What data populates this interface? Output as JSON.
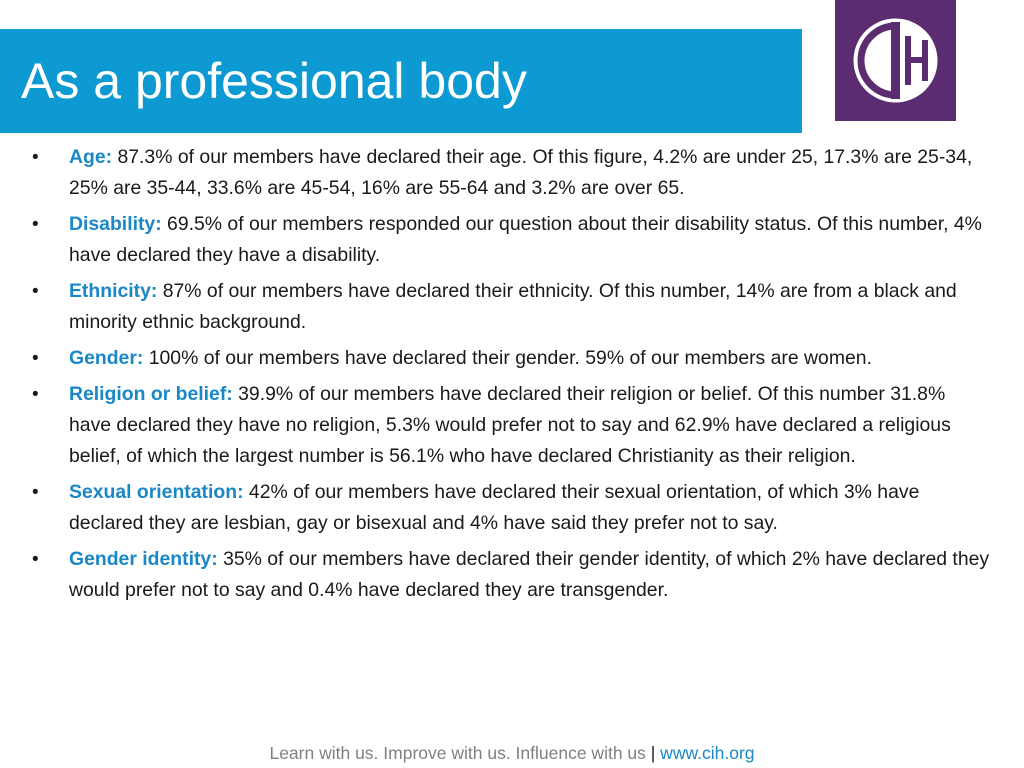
{
  "header": {
    "title": "As a professional body"
  },
  "logo": {
    "text": "CIH",
    "background": "#5b2c6f"
  },
  "colors": {
    "title_bar": "#0d9ad3",
    "label": "#1a87c7",
    "body_text": "#1a1a1a",
    "footer_text": "#808080"
  },
  "bullets": [
    {
      "bullet": "•",
      "label": "Age:",
      "text": " 87.3% of our members have declared their age. Of this figure, 4.2% are under 25, 17.3% are 25-34, 25% are 35-44, 33.6% are 45-54, 16% are 55-64 and 3.2% are over 65."
    },
    {
      "bullet": "•",
      "label": "Disability:",
      "text": " 69.5% of our members responded our question about their disability status. Of this number, 4% have declared they have a disability."
    },
    {
      "bullet": "•",
      "label": "Ethnicity:",
      "text": " 87% of our members have declared their ethnicity. Of this number, 14% are from a black and minority ethnic background."
    },
    {
      "bullet": "•",
      "label": "Gender:",
      "text": " 100% of our members have declared their gender. 59% of our members are women."
    },
    {
      "bullet": "•",
      "label": "Religion or belief:",
      "text": " 39.9% of our members have declared their religion or belief. Of this number 31.8% have declared they have no religion, 5.3% would prefer not to say and 62.9% have declared a religious belief, of which the largest number is 56.1% who have declared Christianity as their religion."
    },
    {
      "bullet": "•",
      "label": "Sexual orientation:",
      "text": " 42% of our members have declared their sexual orientation, of which 3% have declared they are lesbian, gay or bisexual and 4% have said they prefer not to say."
    },
    {
      "bullet": "•",
      "label": "Gender identity:",
      "text": " 35% of our members have declared their gender identity, of which 2% have declared they would prefer not to say and 0.4% have declared they are transgender."
    }
  ],
  "footer": {
    "tagline": "Learn with us. Improve with us. Influence with us ",
    "separator": "|",
    "link": " www.cih.org"
  }
}
